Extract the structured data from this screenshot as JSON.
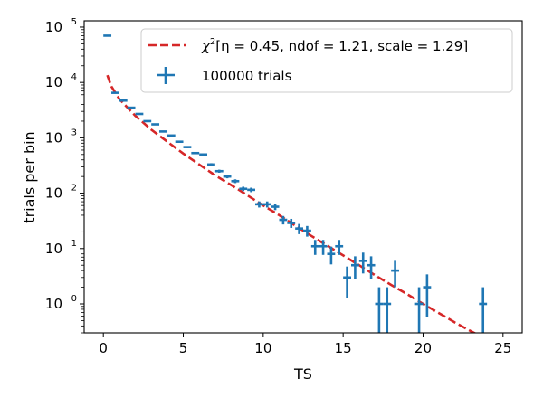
{
  "chart_data": {
    "type": "scatter",
    "xlabel": "TS",
    "ylabel": "trials per bin",
    "xlim": [
      -1.2,
      26.2
    ],
    "ylim": [
      0.3,
      130000
    ],
    "yscale": "log",
    "x_ticks": [
      0,
      5,
      10,
      15,
      20,
      25
    ],
    "y_ticks": [
      {
        "value": 1,
        "base": "10",
        "exp": "0"
      },
      {
        "value": 10,
        "base": "10",
        "exp": "1"
      },
      {
        "value": 100,
        "base": "10",
        "exp": "2"
      },
      {
        "value": 1000,
        "base": "10",
        "exp": "3"
      },
      {
        "value": 10000,
        "base": "10",
        "exp": "4"
      },
      {
        "value": 100000,
        "base": "10",
        "exp": "5"
      }
    ],
    "bin_half_width": 0.25,
    "legend_position": "top-right",
    "series": [
      {
        "name": "100000 trials",
        "color": "#1f77b4",
        "style": "errorbar",
        "points": [
          {
            "x": 0.25,
            "y": 70000
          },
          {
            "x": 0.75,
            "y": 6500
          },
          {
            "x": 1.25,
            "y": 4700
          },
          {
            "x": 1.75,
            "y": 3500
          },
          {
            "x": 2.25,
            "y": 2700
          },
          {
            "x": 2.75,
            "y": 2000
          },
          {
            "x": 3.25,
            "y": 1750
          },
          {
            "x": 3.75,
            "y": 1300
          },
          {
            "x": 4.25,
            "y": 1100
          },
          {
            "x": 4.75,
            "y": 850
          },
          {
            "x": 5.25,
            "y": 680
          },
          {
            "x": 5.75,
            "y": 530
          },
          {
            "x": 6.25,
            "y": 500
          },
          {
            "x": 6.75,
            "y": 330
          },
          {
            "x": 7.25,
            "y": 250
          },
          {
            "x": 7.75,
            "y": 200
          },
          {
            "x": 8.25,
            "y": 165
          },
          {
            "x": 8.75,
            "y": 120
          },
          {
            "x": 9.25,
            "y": 115
          },
          {
            "x": 9.75,
            "y": 63
          },
          {
            "x": 10.25,
            "y": 63
          },
          {
            "x": 10.75,
            "y": 57
          },
          {
            "x": 11.25,
            "y": 33
          },
          {
            "x": 11.75,
            "y": 29
          },
          {
            "x": 12.25,
            "y": 23
          },
          {
            "x": 12.75,
            "y": 21
          },
          {
            "x": 13.25,
            "y": 11
          },
          {
            "x": 13.75,
            "y": 11
          },
          {
            "x": 14.25,
            "y": 8
          },
          {
            "x": 14.75,
            "y": 11
          },
          {
            "x": 15.25,
            "y": 3
          },
          {
            "x": 15.75,
            "y": 5
          },
          {
            "x": 16.25,
            "y": 6
          },
          {
            "x": 16.75,
            "y": 5
          },
          {
            "x": 17.25,
            "y": 1
          },
          {
            "x": 17.75,
            "y": 1
          },
          {
            "x": 18.25,
            "y": 4
          },
          {
            "x": 19.75,
            "y": 1
          },
          {
            "x": 20.25,
            "y": 2
          },
          {
            "x": 23.75,
            "y": 1
          }
        ]
      },
      {
        "name": "χ²[η = 0.45, ndof = 1.21, scale = 1.29]",
        "color": "#d62728",
        "style": "dashed-line",
        "points": [
          {
            "x": 0.25,
            "y": 13500
          },
          {
            "x": 0.5,
            "y": 8500
          },
          {
            "x": 1,
            "y": 5000
          },
          {
            "x": 2,
            "y": 2500
          },
          {
            "x": 3,
            "y": 1400
          },
          {
            "x": 4,
            "y": 850
          },
          {
            "x": 5,
            "y": 520
          },
          {
            "x": 6,
            "y": 330
          },
          {
            "x": 7,
            "y": 210
          },
          {
            "x": 8,
            "y": 140
          },
          {
            "x": 9,
            "y": 92
          },
          {
            "x": 10,
            "y": 60
          },
          {
            "x": 11,
            "y": 40
          },
          {
            "x": 12,
            "y": 26
          },
          {
            "x": 13,
            "y": 17
          },
          {
            "x": 14,
            "y": 11.3
          },
          {
            "x": 15,
            "y": 7.5
          },
          {
            "x": 16,
            "y": 5
          },
          {
            "x": 17,
            "y": 3.3
          },
          {
            "x": 18,
            "y": 2.2
          },
          {
            "x": 19,
            "y": 1.5
          },
          {
            "x": 20,
            "y": 1.0
          },
          {
            "x": 21,
            "y": 0.68
          },
          {
            "x": 22,
            "y": 0.46
          },
          {
            "x": 23,
            "y": 0.32
          },
          {
            "x": 23.5,
            "y": 0.27
          }
        ]
      }
    ],
    "legend": {
      "fit_prefix": "χ",
      "fit_sup": "2",
      "fit_bracket": "[η = 0.45, ndof = 1.21, scale = 1.29]",
      "trials_label": "100000 trials"
    }
  }
}
